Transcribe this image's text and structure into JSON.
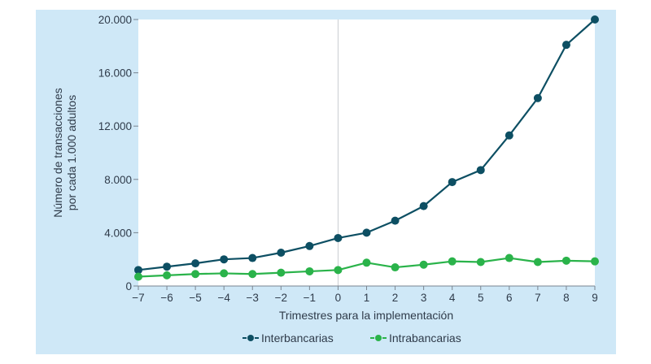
{
  "chart_data": {
    "type": "line",
    "title": "",
    "xlabel": "Trimestres para la implementación",
    "ylabel": "Número de transacciones por cada 1.000 adultos",
    "ylabel_lines": [
      "Número de transacciones",
      "por cada 1.000 adultos"
    ],
    "x": [
      -7,
      -6,
      -5,
      -4,
      -3,
      -2,
      -1,
      0,
      1,
      2,
      3,
      4,
      5,
      6,
      7,
      8,
      9
    ],
    "x_tick_labels": [
      "−7",
      "−6",
      "−5",
      "−4",
      "−3",
      "−2",
      "−1",
      "0",
      "1",
      "2",
      "3",
      "4",
      "5",
      "6",
      "7",
      "8",
      "9"
    ],
    "xlim": [
      -7,
      9
    ],
    "ylim": [
      0,
      20000
    ],
    "y_ticks": [
      0,
      4000,
      8000,
      12000,
      16000,
      20000
    ],
    "y_tick_labels": [
      "0",
      "4.000",
      "8.000",
      "12.000",
      "16.000",
      "20.000"
    ],
    "grid": false,
    "vertical_reference_x": 0,
    "legend": "bottom-center",
    "series": [
      {
        "name": "Interbancarias",
        "color": "#0d4f63",
        "values": [
          1200,
          1450,
          1700,
          2000,
          2100,
          2500,
          3000,
          3600,
          4000,
          4900,
          6000,
          7800,
          8700,
          11300,
          14100,
          18100,
          20000
        ]
      },
      {
        "name": "Intrabancarias",
        "color": "#2ab34a",
        "values": [
          700,
          800,
          900,
          950,
          900,
          1000,
          1100,
          1200,
          1750,
          1400,
          1600,
          1850,
          1800,
          2100,
          1800,
          1900,
          1850
        ]
      }
    ]
  }
}
